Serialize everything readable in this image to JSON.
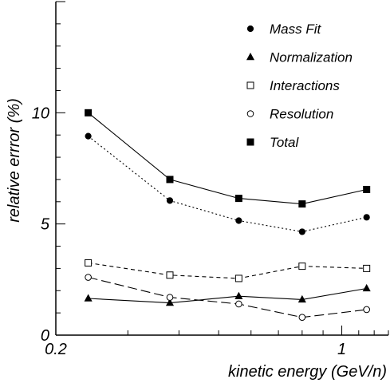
{
  "chart_data": {
    "type": "line",
    "xlabel": "kinetic energy (GeV/n)",
    "ylabel": "relative errror (%)",
    "xscale": "log",
    "xlim": [
      0.2,
      1.3
    ],
    "ylim": [
      0,
      15
    ],
    "x_ticks": [
      {
        "value": 0.2,
        "label": "0.2"
      },
      {
        "value": 1.0,
        "label": "1"
      }
    ],
    "y_ticks": [
      {
        "value": 0,
        "label": "0"
      },
      {
        "value": 5,
        "label": "5"
      },
      {
        "value": 10,
        "label": "10"
      }
    ],
    "legend_position": "top-right",
    "grid": false,
    "x": [
      0.24,
      0.38,
      0.56,
      0.8,
      1.15
    ],
    "series": [
      {
        "name": "Mass Fit",
        "marker": "filled-circle",
        "line_style": "dotted",
        "values": [
          8.95,
          6.05,
          5.15,
          4.65,
          5.3
        ]
      },
      {
        "name": "Normalization",
        "marker": "filled-triangle",
        "line_style": "solid",
        "values": [
          1.65,
          1.45,
          1.75,
          1.6,
          2.1
        ]
      },
      {
        "name": "Interactions",
        "marker": "open-square",
        "line_style": "dashed",
        "values": [
          3.25,
          2.7,
          2.55,
          3.1,
          3.0
        ]
      },
      {
        "name": "Resolution",
        "marker": "open-circle",
        "line_style": "long-dashed",
        "values": [
          2.6,
          1.7,
          1.4,
          0.8,
          1.15
        ]
      },
      {
        "name": "Total",
        "marker": "filled-square",
        "line_style": "solid",
        "values": [
          10.0,
          7.0,
          6.15,
          5.9,
          6.55
        ]
      }
    ]
  }
}
